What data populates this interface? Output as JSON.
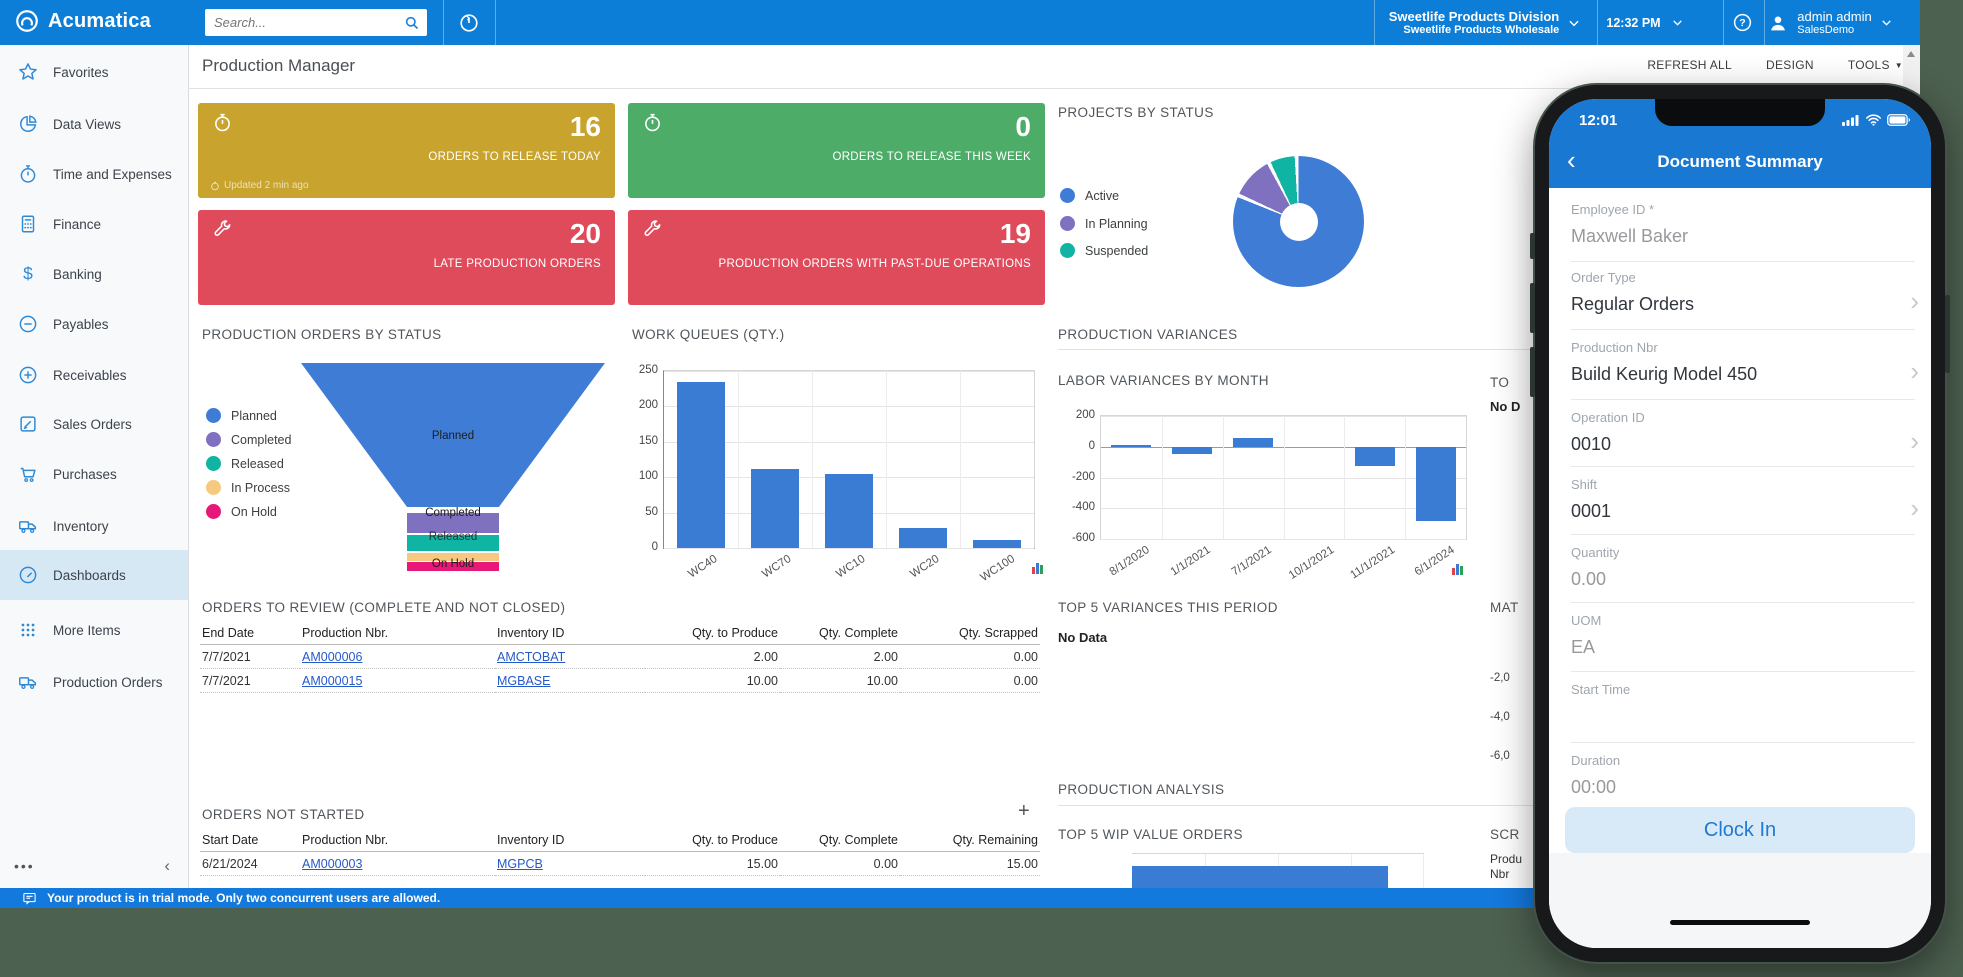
{
  "header": {
    "brand": "Acumatica",
    "search_placeholder": "Search...",
    "company": {
      "line1": "Sweetlife Products Division",
      "line2": "Sweetlife Products Wholesale"
    },
    "time": "12:32 PM",
    "user": {
      "name": "admin admin",
      "tenant": "SalesDemo"
    }
  },
  "sidebar": {
    "items": [
      {
        "label": "Favorites",
        "icon": "star-icon"
      },
      {
        "label": "Data Views",
        "icon": "pie-icon"
      },
      {
        "label": "Time and Expenses",
        "icon": "stopwatch-icon"
      },
      {
        "label": "Finance",
        "icon": "calculator-icon"
      },
      {
        "label": "Banking",
        "icon": "dollar-icon"
      },
      {
        "label": "Payables",
        "icon": "circle-minus-icon"
      },
      {
        "label": "Receivables",
        "icon": "circle-plus-icon"
      },
      {
        "label": "Sales Orders",
        "icon": "pencil-square-icon"
      },
      {
        "label": "Purchases",
        "icon": "cart-icon"
      },
      {
        "label": "Inventory",
        "icon": "truck-icon"
      },
      {
        "label": "Dashboards",
        "icon": "gauge-icon"
      },
      {
        "label": "More Items",
        "icon": "grid-dots-icon"
      },
      {
        "label": "Production Orders",
        "icon": "truck-icon"
      }
    ],
    "active_item": "Dashboards"
  },
  "page": {
    "title": "Production Manager",
    "actions": {
      "refresh": "REFRESH ALL",
      "design": "DESIGN",
      "tools": "TOOLS"
    }
  },
  "tiles": [
    {
      "icon": "stopwatch-icon",
      "value": "16",
      "label": "ORDERS TO RELEASE TODAY",
      "note": "Updated 2 min ago",
      "color": "#c8a42e"
    },
    {
      "icon": "stopwatch-icon",
      "value": "0",
      "label": "ORDERS TO RELEASE THIS WEEK",
      "note": "",
      "color": "#4dac68"
    },
    {
      "icon": "wrench-icon",
      "value": "20",
      "label": "LATE PRODUCTION ORDERS",
      "note": "",
      "color": "#e04b5b"
    },
    {
      "icon": "wrench-icon",
      "value": "19",
      "label": "PRODUCTION ORDERS WITH PAST-DUE OPERATIONS",
      "note": "",
      "color": "#e04b5b"
    }
  ],
  "section_headers": {
    "production_variances": "PRODUCTION VARIANCES",
    "production_analysis": "PRODUCTION ANALYSIS"
  },
  "chart_data": [
    {
      "id": "projects_by_status",
      "type": "pie",
      "donut": true,
      "title": "PROJECTS BY STATUS",
      "labels": [
        "Active",
        "In Planning",
        "Suspended"
      ],
      "values": [
        82,
        11,
        7
      ],
      "colors": [
        "#3e7cd6",
        "#8070c0",
        "#10b4a2"
      ],
      "legend_position": "left"
    },
    {
      "id": "production_orders_by_status",
      "type": "funnel",
      "title": "PRODUCTION ORDERS BY STATUS",
      "labels": [
        "Planned",
        "Completed",
        "Released",
        "In Process",
        "On Hold"
      ],
      "colors": [
        "#3e7cd6",
        "#8070c0",
        "#10b4a2",
        "#f6c97e",
        "#e81878"
      ],
      "legend_position": "left"
    },
    {
      "id": "work_queues",
      "type": "bar",
      "title": "WORK QUEUES (QTY.)",
      "categories": [
        "WC40",
        "WC70",
        "WC10",
        "WC20",
        "WC100"
      ],
      "values": [
        235,
        112,
        104,
        28,
        12
      ],
      "ylim": [
        0,
        250
      ],
      "yticks": [
        0,
        50,
        100,
        150,
        200,
        250
      ],
      "color": "#3a7cd4",
      "grid": true
    },
    {
      "id": "labor_variances_by_month",
      "type": "bar",
      "title": "LABOR VARIANCES BY MONTH",
      "categories": [
        "8/1/2020",
        "1/1/2021",
        "7/1/2021",
        "10/1/2021",
        "11/1/2021",
        "6/1/2024"
      ],
      "values": [
        10,
        -45,
        60,
        0,
        -125,
        -485
      ],
      "ylim": [
        -600,
        200
      ],
      "yticks": [
        200,
        0,
        -200,
        -400,
        -600
      ],
      "color": "#3a7cd4",
      "grid": true
    },
    {
      "id": "top5_wip_value_orders",
      "type": "bar",
      "title": "TOP 5 WIP VALUE ORDERS",
      "note": "chart clipped at bottom of viewport; one blue bar visible"
    }
  ],
  "widgets": {
    "top5_variances": {
      "title": "TOP 5 VARIANCES THIS PERIOD",
      "empty": "No Data"
    }
  },
  "partials": {
    "right_mid_title": "TO",
    "right_mid_nodata": "No D",
    "material_title": "MAT",
    "material_ticks": [
      "-2,0",
      "-4,0",
      "-6,0"
    ],
    "scrap_title": "SCR",
    "scrap_col_line1": "Produ",
    "scrap_col_line2": "Nbr"
  },
  "tables": {
    "orders_to_review": {
      "title": "ORDERS TO REVIEW (COMPLETE AND NOT CLOSED)",
      "columns": [
        "End Date",
        "Production Nbr.",
        "Inventory ID",
        "Qty. to Produce",
        "Qty. Complete",
        "Qty. Scrapped"
      ],
      "rows": [
        {
          "c0": "7/7/2021",
          "c1": "AM000006",
          "c2": "AMCTOBAT",
          "c3": "2.00",
          "c4": "2.00",
          "c5": "0.00"
        },
        {
          "c0": "7/7/2021",
          "c1": "AM000015",
          "c2": "MGBASE",
          "c3": "10.00",
          "c4": "10.00",
          "c5": "0.00"
        }
      ]
    },
    "orders_not_started": {
      "title": "ORDERS NOT STARTED",
      "columns": [
        "Start Date",
        "Production Nbr.",
        "Inventory ID",
        "Qty. to Produce",
        "Qty. Complete",
        "Qty. Remaining"
      ],
      "rows": [
        {
          "c0": "6/21/2024",
          "c1": "AM000003",
          "c2": "MGPCB",
          "c3": "15.00",
          "c4": "0.00",
          "c5": "15.00"
        }
      ]
    }
  },
  "trial_banner": "Your product is in trial mode. Only two concurrent users are allowed.",
  "phone": {
    "status_time": "12:01",
    "nav_title": "Document Summary",
    "fields": [
      {
        "label": "Employee ID *",
        "value": "Maxwell Baker"
      },
      {
        "label": "Order Type",
        "value": "Regular Orders"
      },
      {
        "label": "Production Nbr",
        "value": "Build Keurig Model 450"
      },
      {
        "label": "Operation ID",
        "value": "0010"
      },
      {
        "label": "Shift",
        "value": "0001"
      },
      {
        "label": "Quantity",
        "value": "0.00"
      },
      {
        "label": "UOM",
        "value": "EA"
      },
      {
        "label": "Start Time",
        "value": ""
      },
      {
        "label": "Duration",
        "value": "00:00"
      }
    ],
    "button": "Clock In"
  },
  "colors": {
    "header_blue": "#0d7ed8",
    "trial_blue": "#1379dd",
    "desktop_green": "#4d6150",
    "bar_blue": "#3a7cd4",
    "sidebar_active": "#d7e8f5",
    "link": "#2659c8",
    "phone_header_blue": "#1878d2",
    "clockin_bg": "#d8e9f8",
    "clockin_text": "#1f7ad4"
  }
}
